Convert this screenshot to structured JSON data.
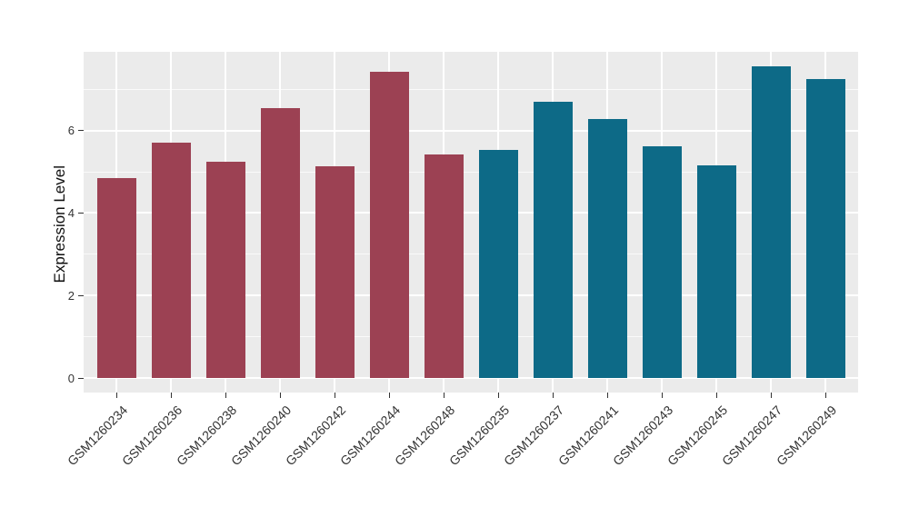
{
  "figure": {
    "ylabel": "Expression Level"
  },
  "chart_data": {
    "type": "bar",
    "title": "",
    "xlabel": "",
    "ylabel": "Expression Level",
    "categories": [
      "GSM1260234",
      "GSM1260236",
      "GSM1260238",
      "GSM1260240",
      "GSM1260242",
      "GSM1260244",
      "GSM1260248",
      "GSM1260235",
      "GSM1260237",
      "GSM1260241",
      "GSM1260243",
      "GSM1260245",
      "GSM1260247",
      "GSM1260249"
    ],
    "values": [
      4.84,
      5.71,
      5.25,
      6.55,
      5.13,
      7.43,
      5.42,
      5.52,
      6.69,
      6.27,
      5.62,
      5.15,
      7.55,
      7.24
    ],
    "bar_groups": [
      "A",
      "A",
      "A",
      "A",
      "A",
      "A",
      "A",
      "B",
      "B",
      "B",
      "B",
      "B",
      "B",
      "B"
    ],
    "palette": {
      "A": "#9C4153",
      "B": "#0D6A87"
    },
    "yticks": [
      0,
      2,
      4,
      6
    ],
    "minor_yticks": [
      1,
      3,
      5,
      7
    ],
    "ylim": [
      0,
      7.92
    ],
    "grid": true,
    "legend_position": "none",
    "panel_bg": "#EBEBEB",
    "gridline_color": "#FFFFFF"
  }
}
